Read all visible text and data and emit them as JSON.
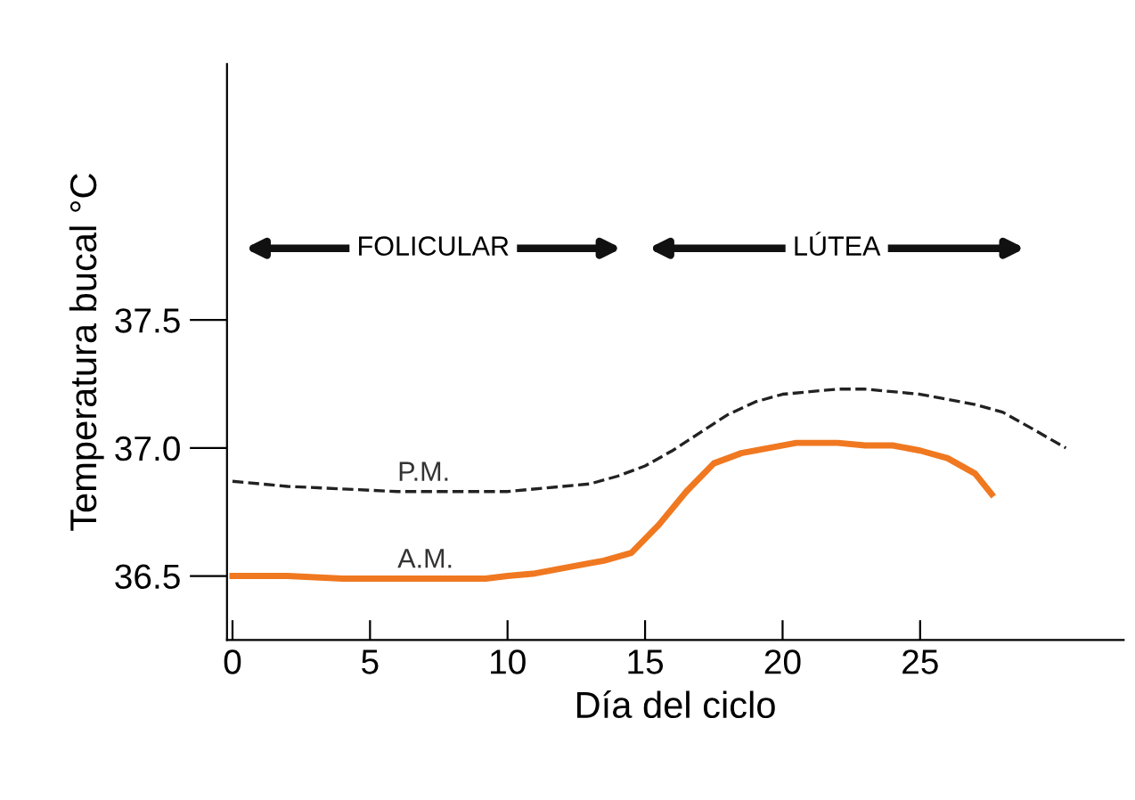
{
  "chart_data": {
    "type": "line",
    "xlabel": "Día del ciclo",
    "ylabel": "Temperatura bucal °C",
    "xlim": [
      -0.2,
      32.4
    ],
    "ylim": [
      36.25,
      38.5
    ],
    "xticks": [
      0,
      5,
      10,
      15,
      20,
      25
    ],
    "yticks": [
      36.5,
      {
        "value": 37.0,
        "label": "37.0"
      },
      37.5
    ],
    "grid": false,
    "marker": "none",
    "series": [
      {
        "name": "P.M.",
        "color": "#222222",
        "line_style": "dashed",
        "x": [
          0,
          2,
          4,
          6,
          8,
          10,
          12,
          13,
          14,
          15,
          16,
          17,
          18,
          19,
          20,
          21,
          22,
          23,
          24,
          25,
          26,
          27,
          28,
          29,
          30.3
        ],
        "values": [
          36.87,
          36.85,
          36.84,
          36.83,
          36.83,
          36.83,
          36.85,
          36.86,
          36.89,
          36.93,
          36.99,
          37.06,
          37.13,
          37.18,
          37.21,
          37.22,
          37.23,
          37.23,
          37.22,
          37.21,
          37.19,
          37.17,
          37.14,
          37.08,
          37.0
        ]
      },
      {
        "name": "A.M.",
        "color": "#f07820",
        "line_style": "solid",
        "x": [
          0,
          2,
          4,
          6,
          8,
          9.2,
          10,
          11,
          12,
          13,
          13.5,
          14.5,
          15.5,
          16.5,
          17.5,
          18.5,
          19.5,
          20.5,
          22,
          23,
          24,
          25,
          26,
          27,
          27.6
        ],
        "values": [
          36.5,
          36.5,
          36.49,
          36.49,
          36.49,
          36.49,
          36.5,
          36.51,
          36.53,
          36.55,
          36.56,
          36.59,
          36.7,
          36.83,
          36.94,
          36.98,
          37.0,
          37.02,
          37.02,
          37.01,
          37.01,
          36.99,
          36.96,
          36.9,
          36.82
        ]
      }
    ],
    "annotations": [
      "FOLICULAR",
      "LÚTEA"
    ]
  }
}
